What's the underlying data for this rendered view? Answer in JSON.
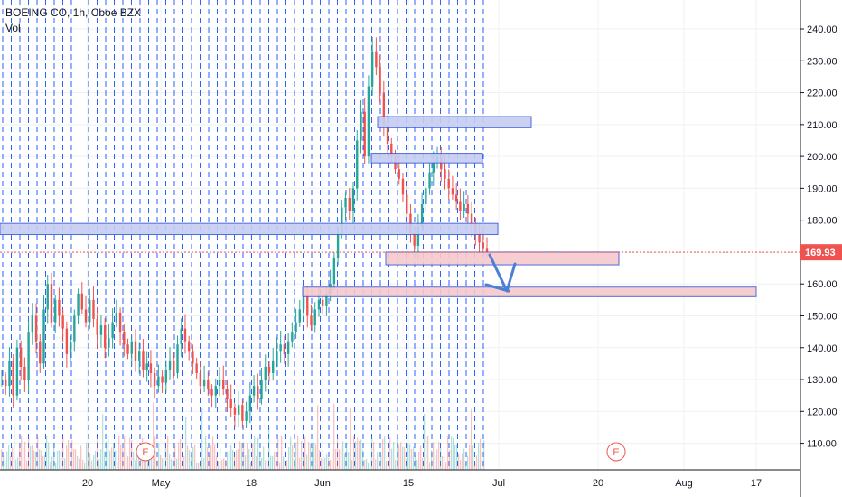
{
  "header": {
    "symbol": "BOEING CO, 1h, Cboe BZX",
    "volume_label": "Vol"
  },
  "price_axis": {
    "ticks": [
      "240.00",
      "230.00",
      "220.00",
      "210.00",
      "200.00",
      "190.00",
      "180.00",
      "170.00",
      "160.00",
      "150.00",
      "140.00",
      "130.00",
      "120.00",
      "110.00"
    ],
    "current_price_label": "169.93",
    "current_price_color": "#ef5350"
  },
  "time_axis": {
    "ticks": [
      "20",
      "May",
      "18",
      "Jun",
      "15",
      "Jul",
      "20",
      "Aug",
      "17"
    ]
  },
  "earnings_markers": [
    "E",
    "E"
  ],
  "colors": {
    "up": "#26a69a",
    "down": "#ef5350",
    "zone_blue_fill": "#c5cdf2",
    "zone_blue_stroke": "#3d5bd9",
    "zone_red_fill": "#f6c8cb",
    "zone_red_stroke": "#3d5bd9",
    "arrow": "#4a7fd6",
    "session_line": "#2962ff"
  },
  "chart_data": {
    "type": "candlestick",
    "title": "BOEING CO, 1h, Cboe BZX",
    "ylim": [
      102,
      246
    ],
    "current_price": 169.93,
    "price_path": [
      [
        0,
        130
      ],
      [
        2,
        128
      ],
      [
        4,
        136
      ],
      [
        6,
        125
      ],
      [
        8,
        140
      ],
      [
        10,
        134
      ],
      [
        12,
        130
      ],
      [
        14,
        145
      ],
      [
        16,
        150
      ],
      [
        18,
        142
      ],
      [
        20,
        135
      ],
      [
        22,
        152
      ],
      [
        24,
        160
      ],
      [
        26,
        148
      ],
      [
        28,
        155
      ],
      [
        30,
        150
      ],
      [
        32,
        146
      ],
      [
        34,
        138
      ],
      [
        36,
        142
      ],
      [
        38,
        150
      ],
      [
        40,
        157
      ],
      [
        42,
        152
      ],
      [
        44,
        148
      ],
      [
        46,
        155
      ],
      [
        48,
        149
      ],
      [
        50,
        144
      ],
      [
        52,
        147
      ],
      [
        54,
        140
      ],
      [
        56,
        143
      ],
      [
        58,
        148
      ],
      [
        60,
        151
      ],
      [
        62,
        145
      ],
      [
        64,
        141
      ],
      [
        66,
        138
      ],
      [
        68,
        142
      ],
      [
        70,
        136
      ],
      [
        72,
        139
      ],
      [
        74,
        133
      ],
      [
        76,
        135
      ],
      [
        78,
        132
      ],
      [
        80,
        128
      ],
      [
        82,
        131
      ],
      [
        84,
        129
      ],
      [
        86,
        133
      ],
      [
        88,
        136
      ],
      [
        90,
        132
      ],
      [
        92,
        141
      ],
      [
        94,
        146
      ],
      [
        96,
        142
      ],
      [
        98,
        139
      ],
      [
        100,
        135
      ],
      [
        102,
        132
      ],
      [
        104,
        128
      ],
      [
        106,
        130
      ],
      [
        108,
        127
      ],
      [
        110,
        125
      ],
      [
        112,
        128
      ],
      [
        114,
        130
      ],
      [
        116,
        127
      ],
      [
        118,
        124
      ],
      [
        120,
        121
      ],
      [
        122,
        119
      ],
      [
        124,
        122
      ],
      [
        126,
        117
      ],
      [
        128,
        120
      ],
      [
        130,
        125
      ],
      [
        132,
        128
      ],
      [
        134,
        124
      ],
      [
        136,
        130
      ],
      [
        138,
        134
      ],
      [
        140,
        132
      ],
      [
        142,
        136
      ],
      [
        144,
        139
      ],
      [
        146,
        141
      ],
      [
        148,
        138
      ],
      [
        150,
        142
      ],
      [
        152,
        145
      ],
      [
        154,
        148
      ],
      [
        156,
        152
      ],
      [
        158,
        156
      ],
      [
        160,
        150
      ],
      [
        162,
        147
      ],
      [
        164,
        152
      ],
      [
        166,
        155
      ],
      [
        168,
        153
      ],
      [
        170,
        157
      ],
      [
        172,
        160
      ],
      [
        174,
        168
      ],
      [
        176,
        176
      ],
      [
        178,
        184
      ],
      [
        180,
        187
      ],
      [
        182,
        183
      ],
      [
        184,
        190
      ],
      [
        186,
        205
      ],
      [
        188,
        214
      ],
      [
        190,
        200
      ],
      [
        192,
        222
      ],
      [
        194,
        233
      ],
      [
        196,
        228
      ],
      [
        198,
        220
      ],
      [
        200,
        210
      ],
      [
        202,
        204
      ],
      [
        204,
        200
      ],
      [
        206,
        196
      ],
      [
        208,
        193
      ],
      [
        210,
        188
      ],
      [
        212,
        182
      ],
      [
        214,
        176
      ],
      [
        216,
        172
      ],
      [
        218,
        178
      ],
      [
        220,
        185
      ],
      [
        222,
        190
      ],
      [
        224,
        195
      ],
      [
        226,
        198
      ],
      [
        228,
        200
      ],
      [
        230,
        196
      ],
      [
        232,
        193
      ],
      [
        234,
        190
      ],
      [
        236,
        188
      ],
      [
        238,
        186
      ],
      [
        240,
        183
      ],
      [
        242,
        185
      ],
      [
        244,
        182
      ],
      [
        246,
        179
      ],
      [
        248,
        176
      ],
      [
        250,
        173
      ],
      [
        252,
        171
      ],
      [
        254,
        170
      ]
    ],
    "volume_profile": "random-low",
    "zones": [
      {
        "color": "blue",
        "y_top": 212.5,
        "y_bottom": 209.0,
        "x_start": "Jun+8",
        "x_end": "Jul+2"
      },
      {
        "color": "blue",
        "y_top": 201.0,
        "y_bottom": 198.0,
        "x_start": "Jun+7",
        "x_end": "Jun+24"
      },
      {
        "color": "blue",
        "y_top": 179.0,
        "y_bottom": 175.5,
        "x_start": "start",
        "x_end": "Jun+26"
      },
      {
        "color": "red",
        "y_top": 170.0,
        "y_bottom": 166.0,
        "x_start": "Jun+9",
        "x_end": "Jul+23"
      },
      {
        "color": "red",
        "y_top": 159.0,
        "y_bottom": 156.0,
        "x_start": "May+27",
        "x_end": "Aug+19"
      }
    ],
    "projection_arrow": [
      [
        169.0,
        "Jun+27"
      ],
      [
        157.0,
        "Jul+1"
      ],
      [
        167.0,
        "Jul+2"
      ]
    ]
  }
}
